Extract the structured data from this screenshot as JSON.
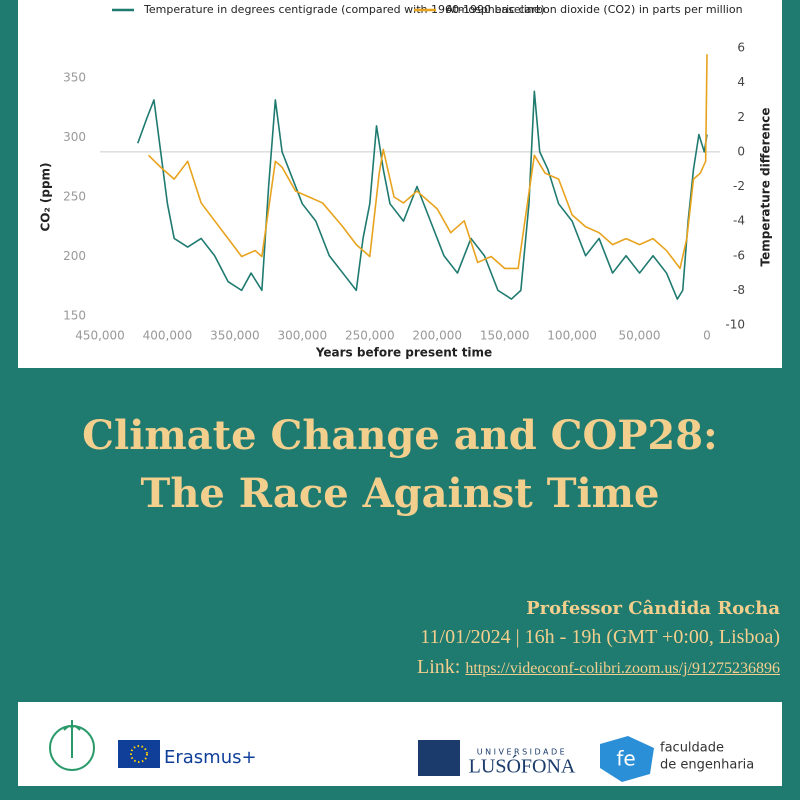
{
  "chart_data": {
    "type": "line",
    "x_label": "Years before present time",
    "y_label": "CO₂ (ppm)",
    "y2_label": "Temperature difference",
    "xlim": [
      450000,
      0
    ],
    "xticks": [
      {
        "value": 450000,
        "label": "450,000"
      },
      {
        "value": 400000,
        "label": "400,000"
      },
      {
        "value": 350000,
        "label": "350,000"
      },
      {
        "value": 300000,
        "label": "300,000"
      },
      {
        "value": 250000,
        "label": "250,000"
      },
      {
        "value": 200000,
        "label": "200,000"
      },
      {
        "value": 150000,
        "label": "150,000"
      },
      {
        "value": 100000,
        "label": "100,000"
      },
      {
        "value": 50000,
        "label": "50,000"
      },
      0
    ],
    "ylim": [
      150,
      350
    ],
    "yticks": [
      150,
      200,
      250,
      300,
      350
    ],
    "y2lim": [
      -10,
      6
    ],
    "y2ticks": [
      -10,
      -8,
      -6,
      -4,
      -2,
      0,
      2,
      4,
      6
    ],
    "series": [
      {
        "name": "Temperature in degrees centigrade (compared with 1960-1990 baseline)",
        "color": "#1f7a70",
        "axis": "y2",
        "x": [
          422000,
          415000,
          410000,
          405000,
          400000,
          395000,
          385000,
          375000,
          365000,
          355000,
          345000,
          338000,
          330000,
          325000,
          320000,
          315000,
          310000,
          300000,
          290000,
          280000,
          270000,
          260000,
          255000,
          250000,
          245000,
          240000,
          235000,
          225000,
          215000,
          205000,
          195000,
          185000,
          175000,
          165000,
          155000,
          145000,
          138000,
          132000,
          128000,
          124000,
          118000,
          110000,
          100000,
          90000,
          80000,
          70000,
          60000,
          50000,
          40000,
          30000,
          22000,
          18000,
          14000,
          10000,
          6000,
          2000,
          0
        ],
        "values": [
          0.5,
          2,
          3,
          0,
          -3,
          -5,
          -5.5,
          -5,
          -6,
          -7.5,
          -8,
          -7,
          -8,
          -2,
          3,
          0,
          -1,
          -3,
          -4,
          -6,
          -7,
          -8,
          -5,
          -3,
          1.5,
          -1,
          -3,
          -4,
          -2,
          -4,
          -6,
          -7,
          -5,
          -6,
          -8,
          -8.5,
          -8,
          -3,
          3.5,
          0,
          -1,
          -3,
          -4,
          -6,
          -5,
          -7,
          -6,
          -7,
          -6,
          -7,
          -8.5,
          -8,
          -4,
          -1,
          1,
          0,
          1
        ]
      },
      {
        "name": "Atmospheric carbon dioxide (CO2) in parts per million",
        "color": "#e8a31e",
        "axis": "y",
        "x": [
          414000,
          405000,
          395000,
          385000,
          375000,
          365000,
          355000,
          345000,
          335000,
          330000,
          325000,
          320000,
          315000,
          305000,
          295000,
          285000,
          270000,
          260000,
          250000,
          243000,
          240000,
          232000,
          225000,
          215000,
          200000,
          190000,
          180000,
          170000,
          160000,
          150000,
          140000,
          135000,
          128000,
          120000,
          110000,
          100000,
          90000,
          80000,
          70000,
          60000,
          50000,
          40000,
          30000,
          20000,
          15000,
          10000,
          5000,
          1000,
          0
        ],
        "values": [
          285,
          275,
          265,
          280,
          245,
          230,
          215,
          200,
          205,
          200,
          240,
          280,
          275,
          255,
          250,
          245,
          225,
          210,
          200,
          270,
          290,
          250,
          245,
          255,
          240,
          220,
          230,
          195,
          200,
          190,
          190,
          230,
          285,
          270,
          265,
          235,
          225,
          220,
          210,
          215,
          210,
          215,
          205,
          190,
          215,
          265,
          270,
          280,
          370
        ]
      }
    ]
  },
  "event": {
    "title": [
      "Climate Change and COP28:",
      "The Race Against Time"
    ],
    "speaker": "Professor Cândida Rocha",
    "datetime": "11/01/2024 |  16h - 19h (GMT +0:00, Lisboa)",
    "link_label": "Link:",
    "link": "https://videoconf-colibri.zoom.us/j/91275236896"
  },
  "logos": {
    "erasmus": "Erasmus+",
    "universidade": "UNIVERSIDADE",
    "lusofona": "LUSÓFONA",
    "fe": "fe",
    "faculdade": [
      "faculdade",
      "de engenharia"
    ]
  }
}
